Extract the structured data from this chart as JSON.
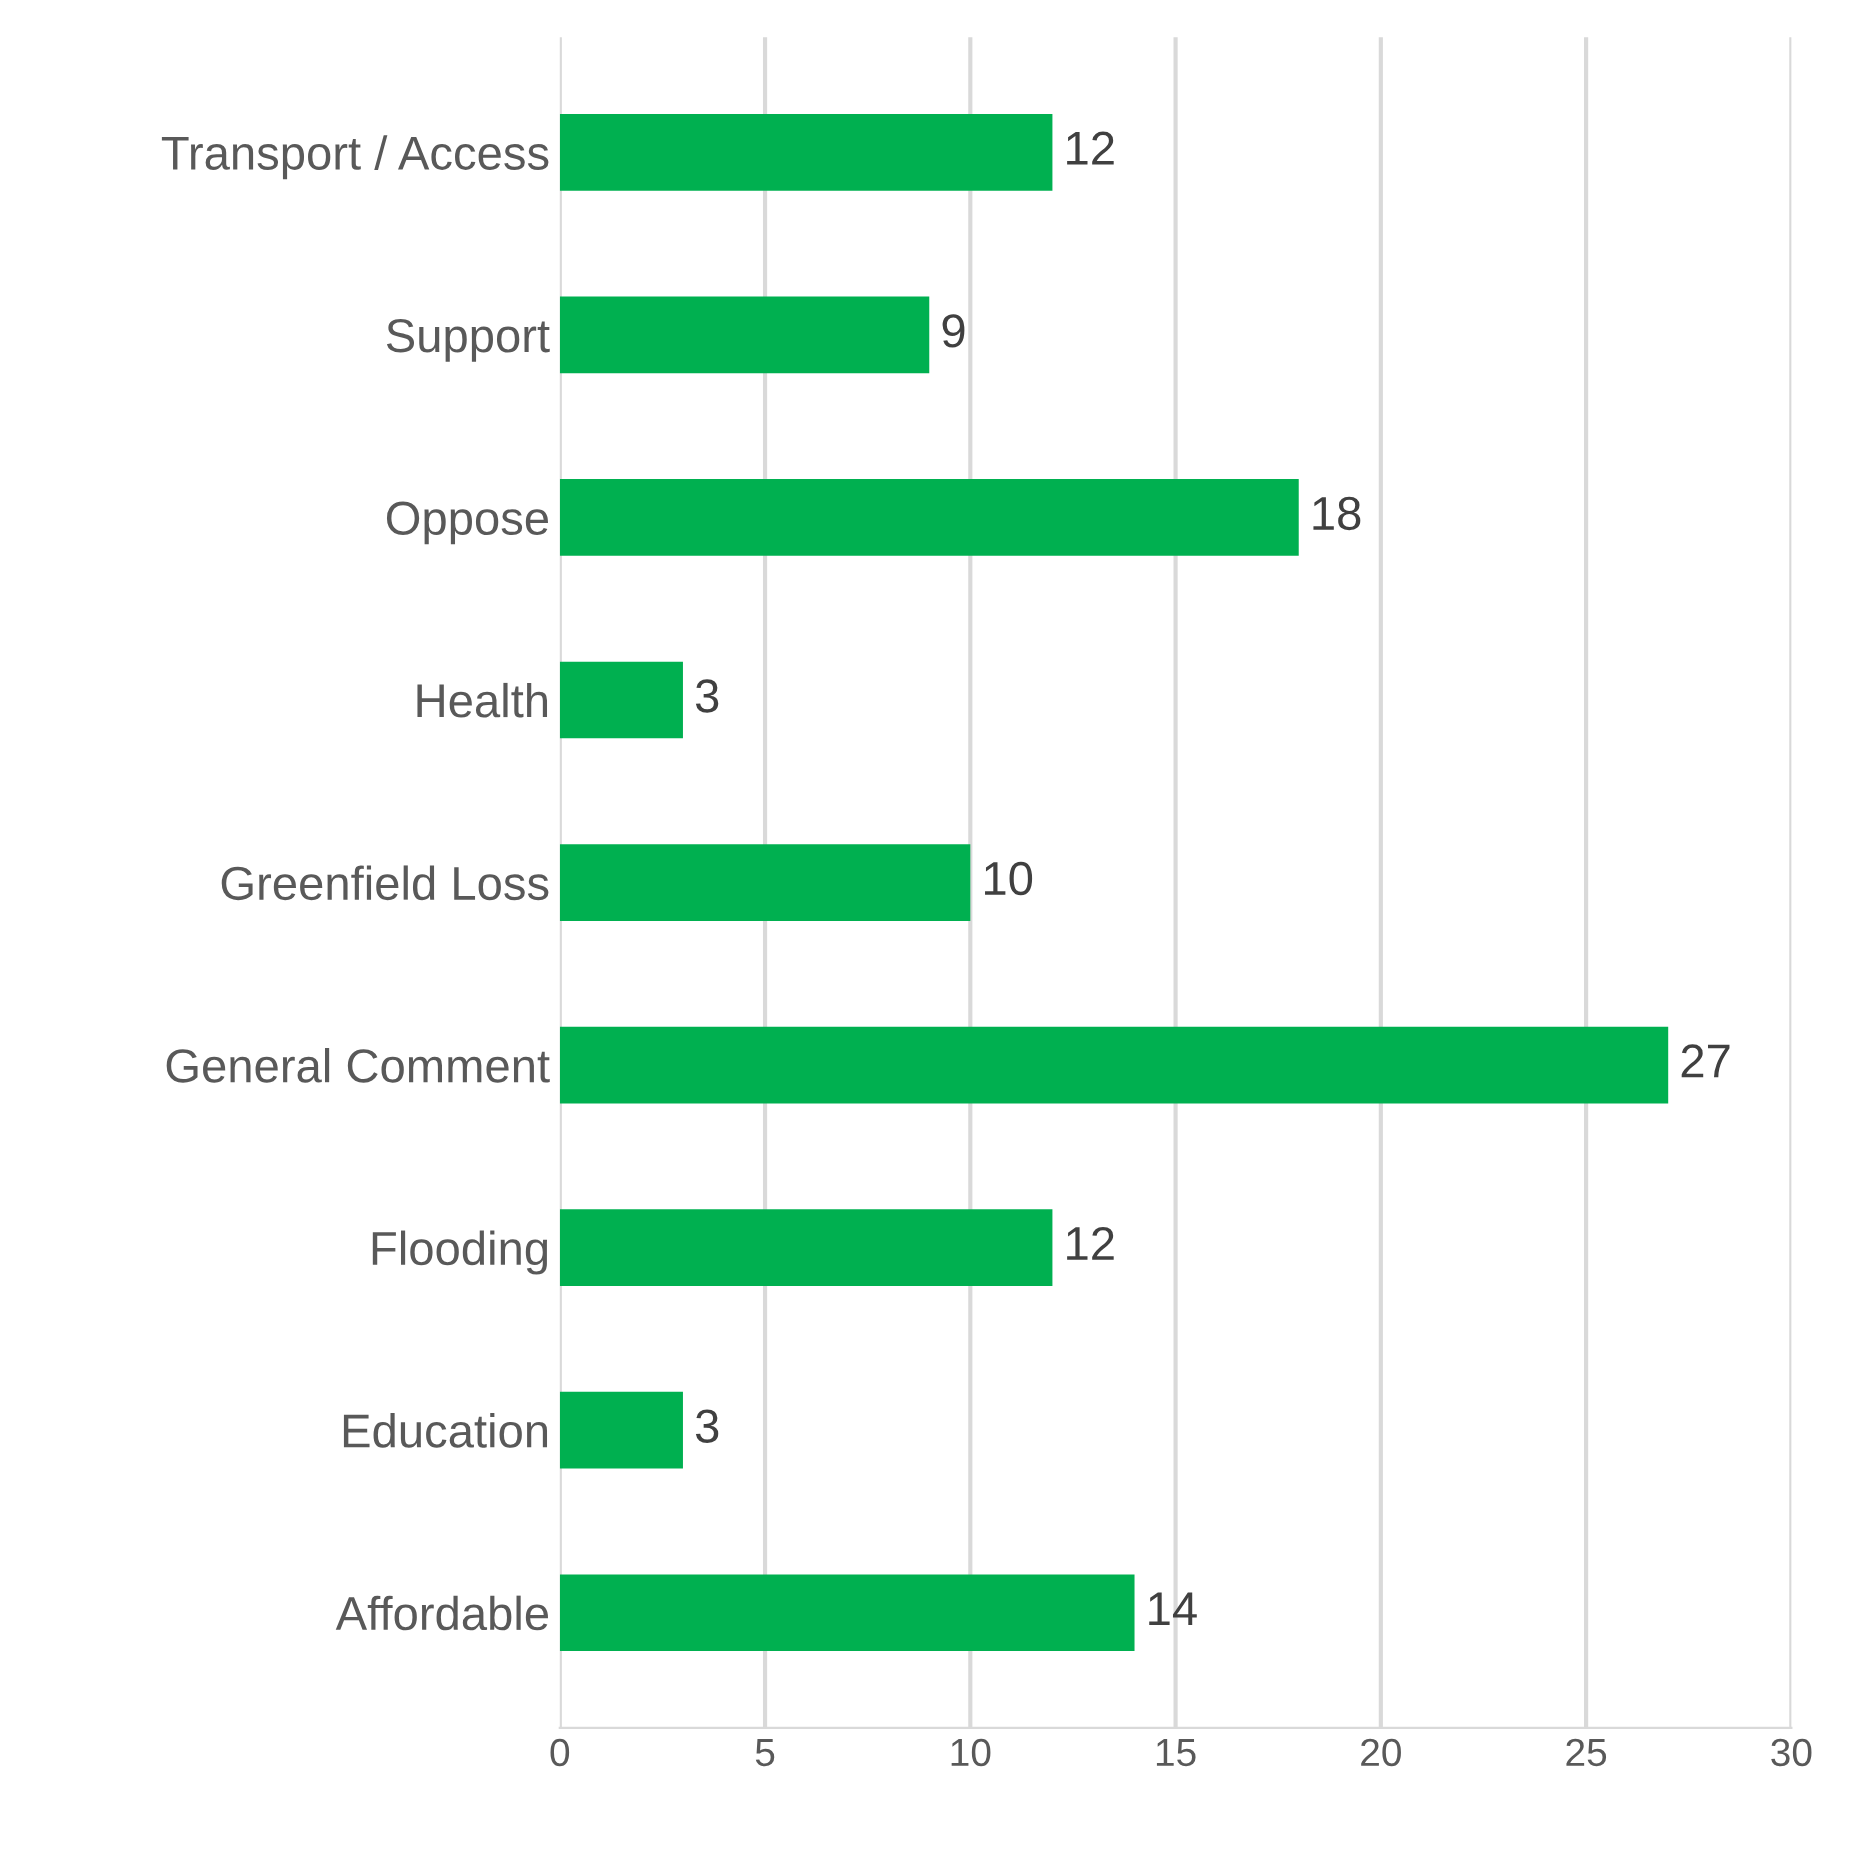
{
  "chart_data": {
    "type": "bar",
    "orientation": "horizontal",
    "categories": [
      "Transport / Access",
      "Support",
      "Oppose",
      "Health",
      "Greenfield Loss",
      "General Comment",
      "Flooding",
      "Education",
      "Affordable"
    ],
    "values": [
      12,
      9,
      18,
      3,
      10,
      27,
      12,
      3,
      14
    ],
    "color": "#00b050",
    "xlim": [
      0,
      30
    ],
    "xticks": [
      0,
      5,
      10,
      15,
      20,
      25,
      30
    ],
    "grid": "x",
    "data_labels": true,
    "legend": false
  }
}
